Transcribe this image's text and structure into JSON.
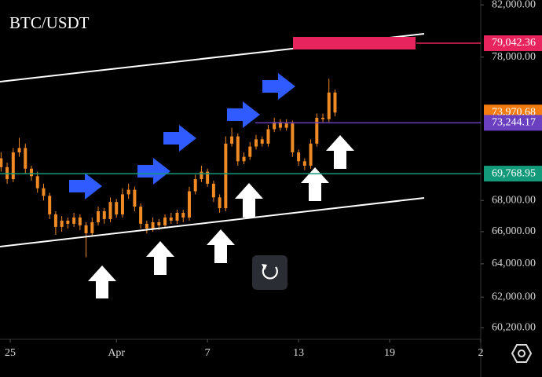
{
  "chart_data": {
    "type": "candlestick",
    "title": "BTC/USDT",
    "log_scale": true,
    "grid": false,
    "color": "#f08a24",
    "x": [
      24.4,
      24.8,
      25.2,
      25.6,
      26.0,
      26.4,
      26.8,
      27.2,
      27.6,
      28.0,
      28.4,
      28.8,
      29.2,
      29.6,
      30.0,
      30.4,
      30.8,
      31.2,
      31.6,
      32.0,
      32.4,
      32.8,
      33.2,
      33.6,
      34.0,
      34.4,
      34.8,
      35.2,
      35.6,
      36.0,
      36.4,
      36.8,
      37.2,
      37.6,
      38.0,
      38.4,
      38.8,
      39.2,
      39.6,
      40.0,
      40.4,
      40.8,
      41.2,
      41.6,
      42.0,
      42.4,
      42.8,
      43.2,
      43.6,
      44.0,
      44.4,
      44.8,
      45.2,
      45.6,
      46.0,
      46.4
    ],
    "open": [
      70800,
      70200,
      69400,
      71200,
      71500,
      70100,
      69600,
      68800,
      68300,
      67100,
      66300,
      66700,
      66500,
      66900,
      66400,
      65900,
      66600,
      67300,
      66800,
      67900,
      67100,
      68400,
      68700,
      67600,
      66500,
      66200,
      66600,
      66400,
      66900,
      66700,
      67200,
      66900,
      68600,
      69400,
      69900,
      69100,
      68200,
      67500,
      71800,
      72300,
      70600,
      70900,
      71600,
      72100,
      71800,
      72800,
      73300,
      72900,
      73200,
      71200,
      70600,
      70300,
      71800,
      73600,
      73500,
      75400
    ],
    "high": [
      71200,
      70500,
      71500,
      72200,
      71800,
      70300,
      69900,
      69100,
      68500,
      67300,
      67000,
      66900,
      67200,
      67100,
      66600,
      66900,
      67600,
      67500,
      68200,
      68100,
      68800,
      69100,
      68900,
      67800,
      66700,
      66900,
      66800,
      67100,
      67200,
      67400,
      67400,
      68900,
      69700,
      70300,
      70100,
      69300,
      68400,
      72300,
      72900,
      72500,
      71200,
      71900,
      72400,
      72300,
      73100,
      73600,
      73500,
      73500,
      73400,
      71400,
      70800,
      72100,
      73900,
      73900,
      76400,
      75600
    ],
    "low": [
      69900,
      69100,
      69200,
      70900,
      69800,
      69300,
      68500,
      68000,
      66800,
      65800,
      66000,
      66200,
      66300,
      66100,
      64400,
      65700,
      66400,
      66500,
      66600,
      66900,
      66900,
      68100,
      67300,
      66200,
      65900,
      66000,
      66100,
      66200,
      66500,
      66500,
      66600,
      66700,
      68400,
      69200,
      68900,
      67900,
      67200,
      67300,
      71600,
      70300,
      70400,
      70700,
      71400,
      71600,
      71600,
      72600,
      72700,
      72700,
      70900,
      70300,
      70000,
      70100,
      71600,
      73300,
      73300,
      73700
    ],
    "close": [
      70200,
      69400,
      71200,
      71500,
      70100,
      69600,
      68800,
      68300,
      67100,
      66300,
      66700,
      66500,
      66900,
      66400,
      65900,
      66600,
      67300,
      66800,
      67900,
      67100,
      68400,
      68700,
      67600,
      66500,
      66200,
      66600,
      66400,
      66900,
      66700,
      67200,
      66900,
      68600,
      69400,
      69900,
      69100,
      68200,
      67500,
      71800,
      72300,
      70600,
      70900,
      71600,
      72100,
      71800,
      72800,
      73300,
      72900,
      73200,
      71200,
      70600,
      70300,
      71800,
      73600,
      73500,
      75400,
      73970.68
    ],
    "xlim": [
      24.33,
      56.0
    ],
    "xticks": [
      25,
      {
        "value": 32,
        "label": "Apr"
      },
      {
        "value": 38,
        "label": "7"
      },
      {
        "value": 44,
        "label": "13"
      },
      {
        "value": 50,
        "label": "19"
      },
      {
        "value": 56,
        "label": "2"
      }
    ],
    "ylim": [
      59540,
      82380
    ],
    "yticks": [
      {
        "value": 82000,
        "label": "82,000.00"
      },
      {
        "value": 78000,
        "label": "78,000.00"
      },
      {
        "value": 68000,
        "label": "68,000.00"
      },
      {
        "value": 66000,
        "label": "66,000.00"
      },
      {
        "value": 64000,
        "label": "64,000.00"
      },
      {
        "value": 62000,
        "label": "62,000.00"
      },
      {
        "value": 60200,
        "label": "60,200.00"
      }
    ],
    "price_lines": [
      {
        "value": 79042.36,
        "label": "79,042.36",
        "color": "#e8245e"
      },
      {
        "value": 73970.68,
        "label": "73,970.68",
        "color": "#f57c10"
      },
      {
        "value": 73244.17,
        "label": "73,244.17",
        "color": "#6a3fc0"
      },
      {
        "value": 69768.95,
        "label": "69,768.95",
        "color": "#129a7a"
      }
    ]
  }
}
